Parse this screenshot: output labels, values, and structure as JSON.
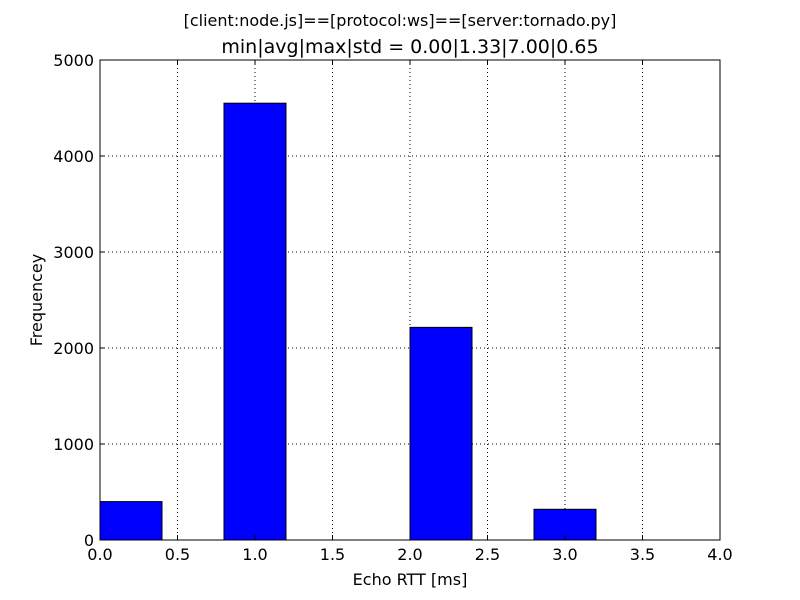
{
  "chart_data": {
    "type": "bar",
    "suptitle": "[client:node.js]==[protocol:ws]==[server:tornado.py]",
    "title": "min|avg|max|std = 0.00|1.33|7.00|0.65",
    "xlabel": "Echo RTT [ms]",
    "ylabel": "Frequencey",
    "xlim": [
      0.0,
      4.0
    ],
    "ylim": [
      0,
      5000
    ],
    "xticks": [
      "0.0",
      "0.5",
      "1.0",
      "1.5",
      "2.0",
      "2.5",
      "3.0",
      "3.5",
      "4.0"
    ],
    "yticks": [
      "0",
      "1000",
      "2000",
      "3000",
      "4000",
      "5000"
    ],
    "grid": true,
    "bar_color": "#0000ff",
    "bars": [
      {
        "x0": 0.0,
        "x1": 0.4,
        "value": 400
      },
      {
        "x0": 0.8,
        "x1": 1.2,
        "value": 4550
      },
      {
        "x0": 2.0,
        "x1": 2.4,
        "value": 2215
      },
      {
        "x0": 2.8,
        "x1": 3.2,
        "value": 320
      }
    ]
  }
}
